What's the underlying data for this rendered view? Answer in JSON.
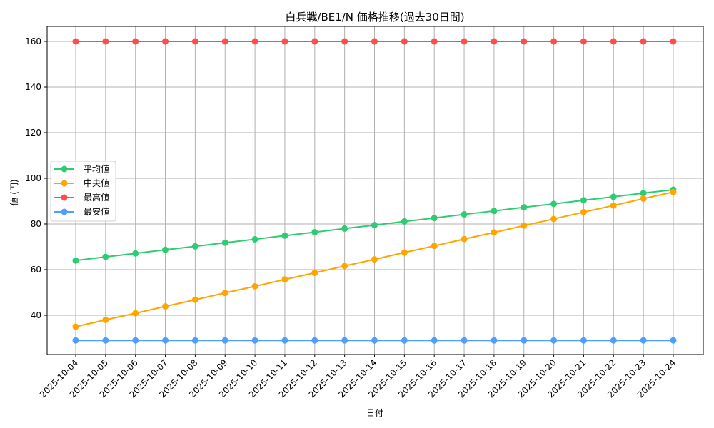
{
  "chart_data": {
    "type": "line",
    "title": "白兵戦/BE1/N 価格推移(過去30日間)",
    "xlabel": "日付",
    "ylabel": "値 (円)",
    "ylim": [
      22,
      166
    ],
    "yticks": [
      40,
      60,
      80,
      100,
      120,
      140,
      160
    ],
    "grid": true,
    "legend_position": "center left",
    "x": [
      "2025-10-04",
      "2025-10-05",
      "2025-10-06",
      "2025-10-07",
      "2025-10-08",
      "2025-10-09",
      "2025-10-10",
      "2025-10-11",
      "2025-10-12",
      "2025-10-13",
      "2025-10-14",
      "2025-10-15",
      "2025-10-16",
      "2025-10-17",
      "2025-10-18",
      "2025-10-19",
      "2025-10-20",
      "2025-10-21",
      "2025-10-22",
      "2025-10-23",
      "2025-10-24"
    ],
    "series": [
      {
        "name": "平均値",
        "color": "#2ecc71",
        "values": [
          64.0,
          65.6,
          67.1,
          68.7,
          70.2,
          71.8,
          73.3,
          74.9,
          76.4,
          78.0,
          79.5,
          81.1,
          82.6,
          84.2,
          85.7,
          87.3,
          88.8,
          90.4,
          91.9,
          93.5,
          95.0
        ]
      },
      {
        "name": "中央値",
        "color": "#ffa500",
        "values": [
          35.0,
          38.0,
          40.9,
          43.9,
          46.8,
          49.8,
          52.7,
          55.7,
          58.6,
          61.6,
          64.5,
          67.5,
          70.4,
          73.4,
          76.3,
          79.3,
          82.2,
          85.2,
          88.1,
          91.1,
          94.0
        ]
      },
      {
        "name": "最高値",
        "color": "#ff4d4d",
        "values": [
          160,
          160,
          160,
          160,
          160,
          160,
          160,
          160,
          160,
          160,
          160,
          160,
          160,
          160,
          160,
          160,
          160,
          160,
          160,
          160,
          160
        ]
      },
      {
        "name": "最安値",
        "color": "#4d9fff",
        "values": [
          29,
          29,
          29,
          29,
          29,
          29,
          29,
          29,
          29,
          29,
          29,
          29,
          29,
          29,
          29,
          29,
          29,
          29,
          29,
          29,
          29
        ]
      }
    ]
  }
}
